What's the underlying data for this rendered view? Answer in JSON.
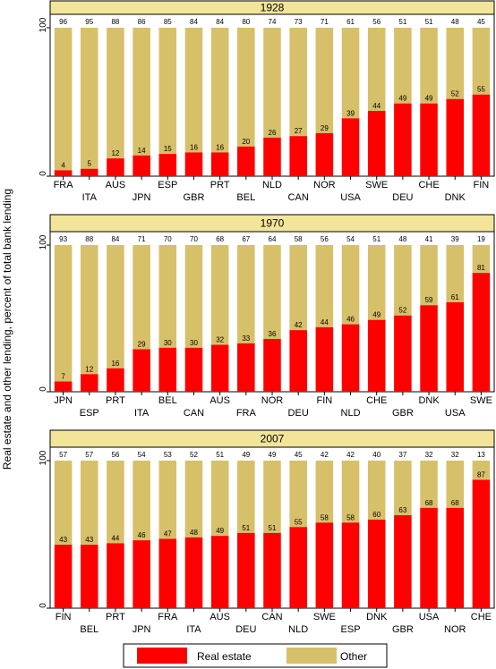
{
  "chart_data": {
    "type": "bar",
    "stacked": true,
    "ylabel": "Real estate and other lending, percent of total bank lending",
    "ylim": [
      0,
      100
    ],
    "yticks": [
      "0",
      "100"
    ],
    "legend": {
      "position": "bottom",
      "items": [
        {
          "name": "Real estate",
          "color": "#ff0000"
        },
        {
          "name": "Other",
          "color": "#d7c06a"
        }
      ]
    },
    "panels": [
      {
        "title": "1928",
        "categories": [
          "FRA",
          "ITA",
          "AUS",
          "JPN",
          "ESP",
          "GBR",
          "PRT",
          "BEL",
          "NLD",
          "CAN",
          "NOR",
          "USA",
          "SWE",
          "DEU",
          "CHE",
          "DNK",
          "FIN"
        ],
        "series": [
          {
            "name": "Real estate",
            "values": [
              4,
              5,
              12,
              14,
              15,
              16,
              16,
              20,
              26,
              27,
              29,
              39,
              44,
              49,
              49,
              52,
              55
            ]
          },
          {
            "name": "Other",
            "values": [
              96,
              95,
              88,
              86,
              85,
              84,
              84,
              80,
              74,
              73,
              71,
              61,
              56,
              51,
              51,
              48,
              45
            ]
          }
        ]
      },
      {
        "title": "1970",
        "categories": [
          "JPN",
          "ESP",
          "PRT",
          "ITA",
          "BEL",
          "CAN",
          "AUS",
          "FRA",
          "NOR",
          "DEU",
          "FIN",
          "NLD",
          "CHE",
          "GBR",
          "DNK",
          "USA",
          "SWE"
        ],
        "series": [
          {
            "name": "Real estate",
            "values": [
              7,
              12,
              16,
              29,
              30,
              30,
              32,
              33,
              36,
              42,
              44,
              46,
              49,
              52,
              59,
              61,
              81
            ]
          },
          {
            "name": "Other",
            "values": [
              93,
              88,
              84,
              71,
              70,
              70,
              68,
              67,
              64,
              58,
              56,
              54,
              51,
              48,
              41,
              39,
              19
            ]
          }
        ]
      },
      {
        "title": "2007",
        "categories": [
          "FIN",
          "BEL",
          "PRT",
          "JPN",
          "FRA",
          "ITA",
          "AUS",
          "DEU",
          "CAN",
          "NLD",
          "SWE",
          "ESP",
          "DNK",
          "GBR",
          "USA",
          "NOR",
          "CHE"
        ],
        "series": [
          {
            "name": "Real estate",
            "values": [
              43,
              43,
              44,
              46,
              47,
              48,
              49,
              51,
              51,
              55,
              58,
              58,
              60,
              63,
              68,
              68,
              87
            ]
          },
          {
            "name": "Other",
            "values": [
              57,
              57,
              56,
              54,
              53,
              52,
              51,
              49,
              49,
              45,
              42,
              42,
              40,
              37,
              32,
              32,
              13
            ]
          }
        ]
      }
    ]
  }
}
